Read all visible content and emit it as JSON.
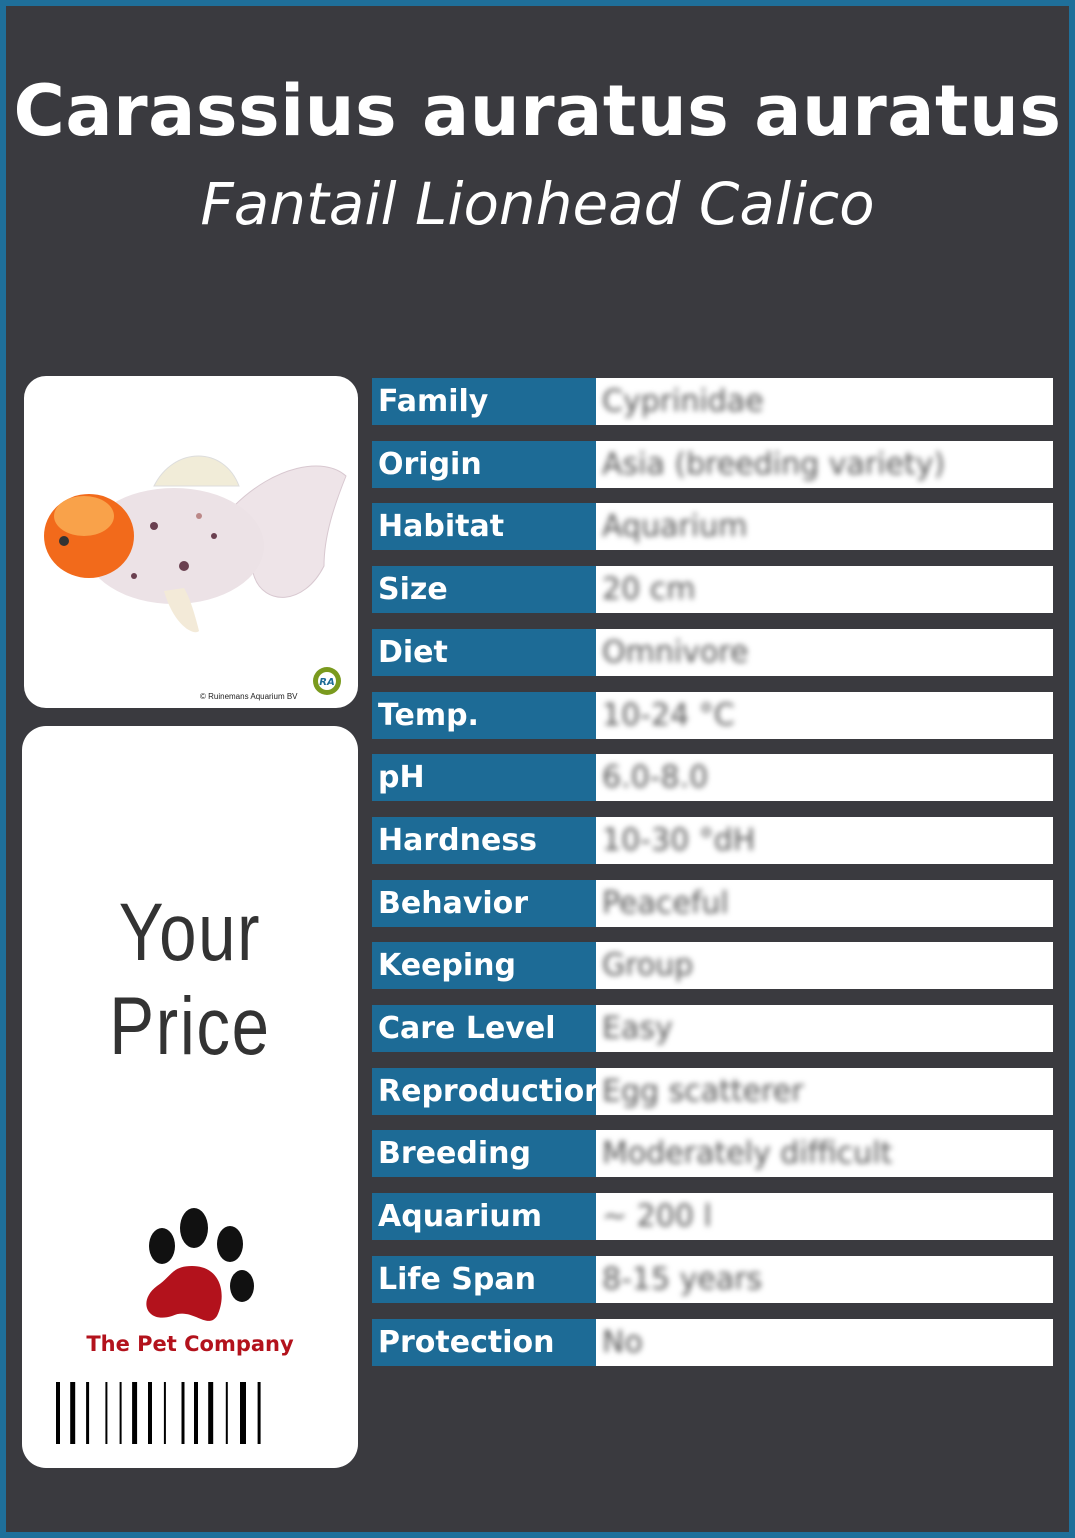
{
  "title": "Carassius auratus auratus",
  "subtitle": "Fantail Lionhead Calico",
  "photo": {
    "credit": "© Ruinemans Aquarium BV",
    "logo_text": "RA"
  },
  "price_label": "Your Price",
  "company": "The Pet Company",
  "colors": {
    "border": "#1f6f9a",
    "background": "#3a3a3f",
    "label_bg": "#1d6b96",
    "company": "#b3121c"
  },
  "facts": [
    {
      "label": "Family",
      "value": "Cyprinidae"
    },
    {
      "label": "Origin",
      "value": "Asia (breeding variety)"
    },
    {
      "label": "Habitat",
      "value": "Aquarium"
    },
    {
      "label": "Size",
      "value": "20 cm"
    },
    {
      "label": "Diet",
      "value": "Omnivore"
    },
    {
      "label": "Temp.",
      "value": "10-24 °C"
    },
    {
      "label": "pH",
      "value": "6.0-8.0"
    },
    {
      "label": "Hardness",
      "value": "10-30 °dH"
    },
    {
      "label": "Behavior",
      "value": "Peaceful"
    },
    {
      "label": "Keeping",
      "value": "Group"
    },
    {
      "label": "Care Level",
      "value": "Easy"
    },
    {
      "label": "Reproduction",
      "value": "Egg scatterer"
    },
    {
      "label": "Breeding",
      "value": "Moderately difficult"
    },
    {
      "label": "Aquarium",
      "value": "~ 200 l"
    },
    {
      "label": "Life Span",
      "value": "8-15 years"
    },
    {
      "label": "Protection",
      "value": "No"
    }
  ]
}
